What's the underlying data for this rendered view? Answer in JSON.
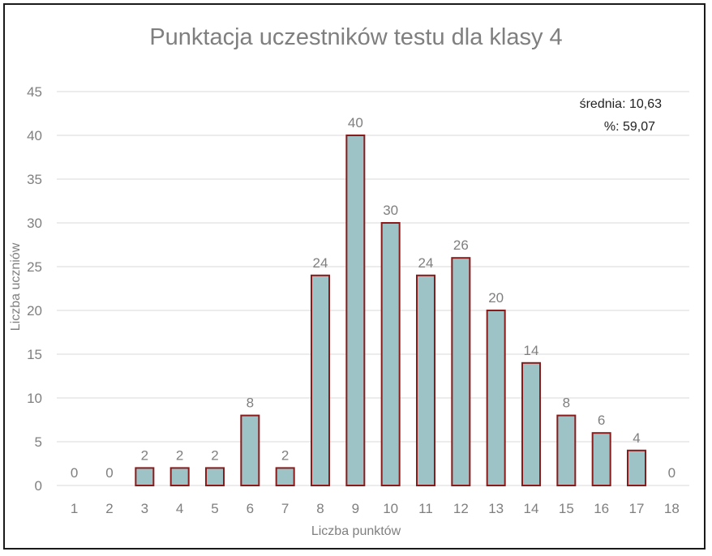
{
  "chart_data": {
    "type": "bar",
    "title": "Punktacja uczestników testu dla klasy 4",
    "xlabel": "Liczba punktów",
    "ylabel": "Liczba uczniów",
    "categories": [
      "1",
      "2",
      "3",
      "4",
      "5",
      "6",
      "7",
      "8",
      "9",
      "10",
      "11",
      "12",
      "13",
      "14",
      "15",
      "16",
      "17",
      "18"
    ],
    "values": [
      0,
      0,
      2,
      2,
      2,
      8,
      2,
      24,
      40,
      30,
      24,
      26,
      20,
      14,
      8,
      6,
      4,
      0
    ],
    "ylim": [
      0,
      45
    ],
    "yticks": [
      0,
      5,
      10,
      15,
      20,
      25,
      30,
      35,
      40,
      45
    ],
    "grid": true,
    "data_labels": true,
    "annotations": [
      "średnia: 10,63",
      "%: 59,07"
    ]
  },
  "colors": {
    "bar_fill": "#9dc3c6",
    "bar_stroke": "#8b1a1a",
    "text": "#7f7f7f",
    "grid": "#d9d9d9"
  }
}
